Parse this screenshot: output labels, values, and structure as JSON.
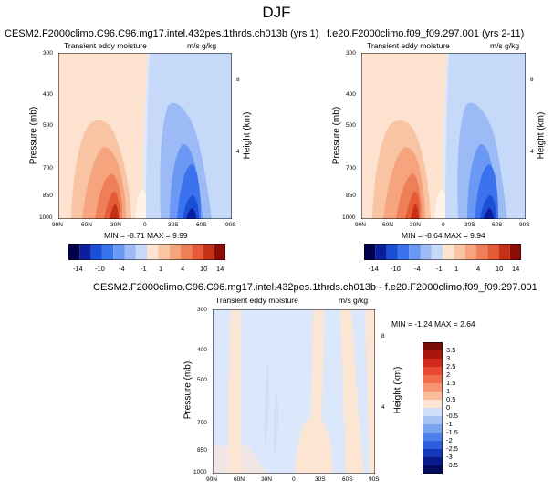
{
  "suptitle": "DJF",
  "panels": [
    {
      "title": "CESM2.F2000climo.C96.C96.mg17.intel.432pes.1thrds.ch013b (yrs 1)",
      "left_string": "Transient eddy moisture",
      "units": "m/s g/kg",
      "min_max": "MIN =  -8.71   MAX =   9.99",
      "colorbar_labels": [
        "-14",
        "-10",
        "-4",
        "-1",
        "1",
        "4",
        "10",
        "14"
      ]
    },
    {
      "title": "f.e20.F2000climo.f09_f09.297.001 (yrs 2-11)",
      "left_string": "Transient eddy moisture",
      "units": "m/s g/kg",
      "min_max": "MIN =  -8.64   MAX =   9.94",
      "colorbar_labels": [
        "-14",
        "-10",
        "-4",
        "-1",
        "1",
        "4",
        "10",
        "14"
      ]
    },
    {
      "title": "CESM2.F2000climo.C96.C96.mg17.intel.432pes.1thrds.ch013b - f.e20.F2000climo.f09_f09.297.001",
      "left_string": "Transient eddy moisture",
      "units": "m/s g/kg",
      "min_max": "MIN =  -1.24   MAX =   2.64",
      "colorbar_labels": [
        "3.5",
        "3",
        "2.5",
        "2",
        "1.5",
        "1",
        "0.5",
        "0",
        "-0.5",
        "-1",
        "-1.5",
        "-2",
        "-2.5",
        "-3",
        "-3.5"
      ]
    }
  ],
  "axes": {
    "ylabel": "Pressure (mb)",
    "y2label": "Height (km)",
    "pressure_ticks": [
      "300",
      "400",
      "500",
      "700",
      "850",
      "1000"
    ],
    "height_ticks": [
      "8",
      "4"
    ],
    "lat_ticks": [
      "90N",
      "60N",
      "30N",
      "0",
      "30S",
      "60S",
      "90S"
    ]
  },
  "chart_data": [
    {
      "type": "heatmap",
      "title": "CESM2.F2000climo.C96.C96.mg17.intel.432pes.1thrds.ch013b (yrs 1)",
      "xlabel": "",
      "ylabel": "Pressure (mb)",
      "y2label": "Height (km)",
      "x_ticks": [
        "90N",
        "60N",
        "30N",
        "0",
        "30S",
        "60S",
        "90S"
      ],
      "y_ticks": [
        300,
        400,
        500,
        700,
        850,
        1000
      ],
      "y_log_scale": true,
      "ylim": [
        1000,
        300
      ],
      "color_levels": [
        -14,
        -10,
        -4,
        -1,
        1,
        4,
        10,
        14
      ],
      "colors": [
        "#00004d",
        "#0a1f9e",
        "#1a4fd6",
        "#3b73ee",
        "#6a98f3",
        "#9cbbf6",
        "#c6d9f9",
        "#fde3cf",
        "#f9c4a4",
        "#f5a47e",
        "#ef7f58",
        "#e55b36",
        "#c53116",
        "#8c0c06"
      ],
      "min": -8.71,
      "max": 9.99
    },
    {
      "type": "heatmap",
      "title": "f.e20.F2000climo.f09_f09.297.001 (yrs 2-11)",
      "xlabel": "",
      "ylabel": "Pressure (mb)",
      "y2label": "Height (km)",
      "x_ticks": [
        "90N",
        "60N",
        "30N",
        "0",
        "30S",
        "60S",
        "90S"
      ],
      "y_ticks": [
        300,
        400,
        500,
        700,
        850,
        1000
      ],
      "y_log_scale": true,
      "ylim": [
        1000,
        300
      ],
      "color_levels": [
        -14,
        -10,
        -4,
        -1,
        1,
        4,
        10,
        14
      ],
      "min": -8.64,
      "max": 9.94
    },
    {
      "type": "heatmap",
      "title": "CESM2.F2000climo.C96.C96.mg17.intel.432pes.1thrds.ch013b - f.e20.F2000climo.f09_f09.297.001",
      "xlabel": "",
      "ylabel": "Pressure (mb)",
      "y2label": "Height (km)",
      "x_ticks": [
        "90N",
        "60N",
        "30N",
        "0",
        "30S",
        "60S",
        "90S"
      ],
      "y_ticks": [
        300,
        400,
        500,
        700,
        850,
        1000
      ],
      "y_log_scale": true,
      "ylim": [
        1000,
        300
      ],
      "color_levels": [
        3.5,
        3,
        2.5,
        2,
        1.5,
        1,
        0.5,
        0,
        -0.5,
        -1,
        -1.5,
        -2,
        -2.5,
        -3,
        -3.5
      ],
      "colors": [
        "#7a0a08",
        "#a9150f",
        "#cf2a1b",
        "#e8482f",
        "#f26d4d",
        "#f69573",
        "#f9bc9d",
        "#fde5d3",
        "#cfdff8",
        "#a5c2f5",
        "#7aa3f0",
        "#4f80ea",
        "#2b5fdc",
        "#1638b8",
        "#0a1a8a",
        "#020b5c"
      ],
      "min": -1.24,
      "max": 2.64
    }
  ],
  "colors": {
    "warm": [
      "#fde3cf",
      "#f9c4a4",
      "#f5a47e",
      "#ef7f58",
      "#e55b36",
      "#c53116",
      "#8c0c06"
    ],
    "cool": [
      "#dbe8fb",
      "#c6d9f9",
      "#9cbbf6",
      "#6a98f3",
      "#3b73ee",
      "#1a4fd6",
      "#0a1f9e",
      "#00004d"
    ]
  }
}
